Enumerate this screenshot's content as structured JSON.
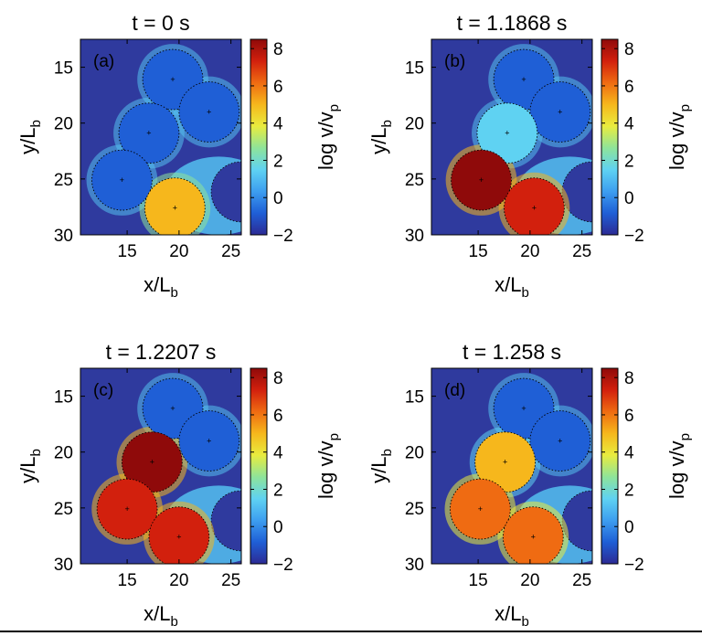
{
  "figure": {
    "colormap": [
      "#2c2a94",
      "#1f5fd6",
      "#3d9ef0",
      "#5fd2f2",
      "#8ee49a",
      "#e9ec3e",
      "#f6b71c",
      "#ef6b12",
      "#d2200d",
      "#8f0a0a"
    ],
    "background_color": "#2f3a9e",
    "halo_color": "#54bfee"
  },
  "panels": [
    {
      "label": "(a)",
      "title": "t = 0 s",
      "xlabel_main": "x/L",
      "xlabel_sub": "b",
      "ylabel_main": "y/L",
      "ylabel_sub": "b",
      "cbar_label_main": "log v/v",
      "cbar_label_sub": "p",
      "xticks": [
        "15",
        "20",
        "25"
      ],
      "yticks": [
        "15",
        "20",
        "25",
        "30"
      ],
      "cticks": [
        "8",
        "6",
        "4",
        "2",
        "0",
        "−2"
      ],
      "xlim": [
        10.5,
        26
      ],
      "ylim": [
        12.5,
        30
      ],
      "clim": [
        -2,
        8.5
      ],
      "chart_data": {
        "type": "heatmap",
        "xlim": [
          10.5,
          26
        ],
        "ylim": [
          12.5,
          30
        ],
        "clim": [
          -2,
          8.5
        ],
        "grains": [
          {
            "x": 19.4,
            "y": 16.1,
            "r": 2.9,
            "log_v": -1.2
          },
          {
            "x": 22.9,
            "y": 19.0,
            "r": 2.9,
            "log_v": -1.2
          },
          {
            "x": 17.1,
            "y": 20.9,
            "r": 2.9,
            "log_v": -1.2
          },
          {
            "x": 14.5,
            "y": 25.1,
            "r": 2.9,
            "log_v": -1.2
          },
          {
            "x": 19.6,
            "y": 27.6,
            "r": 2.9,
            "log_v": 5.0
          }
        ]
      }
    },
    {
      "label": "(b)",
      "title": "t = 1.1868 s",
      "xlabel_main": "x/L",
      "xlabel_sub": "b",
      "ylabel_main": "y/L",
      "ylabel_sub": "b",
      "cbar_label_main": "log v/v",
      "cbar_label_sub": "p",
      "xticks": [
        "15",
        "20",
        "25"
      ],
      "yticks": [
        "15",
        "20",
        "25",
        "30"
      ],
      "cticks": [
        "8",
        "6",
        "4",
        "2",
        "0",
        "−2"
      ],
      "xlim": [
        10.5,
        26
      ],
      "ylim": [
        12.5,
        30
      ],
      "clim": [
        -2,
        8.5
      ],
      "chart_data": {
        "type": "heatmap",
        "xlim": [
          10.5,
          26
        ],
        "ylim": [
          12.5,
          30
        ],
        "clim": [
          -2,
          8.5
        ],
        "grains": [
          {
            "x": 19.4,
            "y": 16.1,
            "r": 2.9,
            "log_v": -1.2
          },
          {
            "x": 22.9,
            "y": 19.0,
            "r": 2.9,
            "log_v": -1.2
          },
          {
            "x": 17.8,
            "y": 20.9,
            "r": 2.9,
            "log_v": 1.5
          },
          {
            "x": 15.3,
            "y": 25.1,
            "r": 2.9,
            "log_v": 8.0
          },
          {
            "x": 20.4,
            "y": 27.6,
            "r": 2.9,
            "log_v": 7.5
          }
        ]
      }
    },
    {
      "label": "(c)",
      "title": "t = 1.2207 s",
      "xlabel_main": "x/L",
      "xlabel_sub": "b",
      "ylabel_main": "y/L",
      "ylabel_sub": "b",
      "cbar_label_main": "log v/v",
      "cbar_label_sub": "p",
      "xticks": [
        "15",
        "20",
        "25"
      ],
      "yticks": [
        "15",
        "20",
        "25",
        "30"
      ],
      "cticks": [
        "8",
        "6",
        "4",
        "2",
        "0",
        "−2"
      ],
      "xlim": [
        10.5,
        26
      ],
      "ylim": [
        12.5,
        30
      ],
      "clim": [
        -2,
        8.5
      ],
      "chart_data": {
        "type": "heatmap",
        "xlim": [
          10.5,
          26
        ],
        "ylim": [
          12.5,
          30
        ],
        "clim": [
          -2,
          8.5
        ],
        "grains": [
          {
            "x": 19.4,
            "y": 16.1,
            "r": 2.9,
            "log_v": -1.2
          },
          {
            "x": 22.9,
            "y": 19.0,
            "r": 2.9,
            "log_v": -1.2
          },
          {
            "x": 17.4,
            "y": 20.9,
            "r": 2.9,
            "log_v": 8.0
          },
          {
            "x": 15.0,
            "y": 25.1,
            "r": 2.9,
            "log_v": 7.5
          },
          {
            "x": 20.0,
            "y": 27.6,
            "r": 2.9,
            "log_v": 7.0
          }
        ]
      }
    },
    {
      "label": "(d)",
      "title": "t = 1.258 s",
      "xlabel_main": "x/L",
      "xlabel_sub": "b",
      "ylabel_main": "y/L",
      "ylabel_sub": "b",
      "cbar_label_main": "log v/v",
      "cbar_label_sub": "p",
      "xticks": [
        "15",
        "20",
        "25"
      ],
      "yticks": [
        "15",
        "20",
        "25",
        "30"
      ],
      "cticks": [
        "8",
        "6",
        "4",
        "2",
        "0",
        "−2"
      ],
      "xlim": [
        10.5,
        26
      ],
      "ylim": [
        12.5,
        30
      ],
      "clim": [
        -2,
        8.5
      ],
      "chart_data": {
        "type": "heatmap",
        "xlim": [
          10.5,
          26
        ],
        "ylim": [
          12.5,
          30
        ],
        "clim": [
          -2,
          8.5
        ],
        "grains": [
          {
            "x": 19.4,
            "y": 16.1,
            "r": 2.9,
            "log_v": -1.2
          },
          {
            "x": 22.9,
            "y": 19.0,
            "r": 2.9,
            "log_v": -1.2
          },
          {
            "x": 17.6,
            "y": 20.9,
            "r": 2.9,
            "log_v": 4.5
          },
          {
            "x": 15.2,
            "y": 25.1,
            "r": 2.9,
            "log_v": 6.5
          },
          {
            "x": 20.3,
            "y": 27.6,
            "r": 2.9,
            "log_v": 6.5
          }
        ]
      }
    }
  ]
}
